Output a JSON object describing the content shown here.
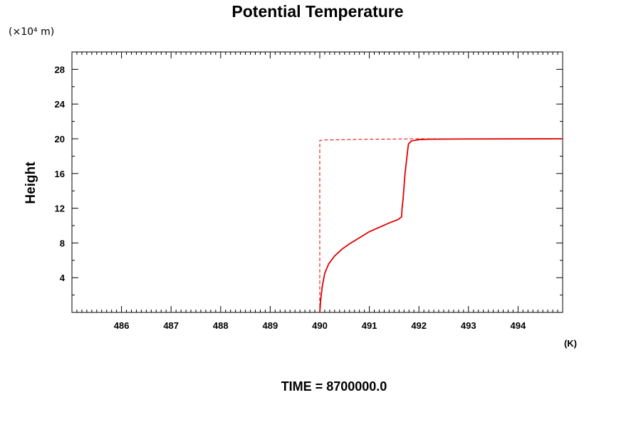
{
  "chart_data": {
    "type": "line",
    "title": "Potential Temperature",
    "ylabel": "Height",
    "yunit": "(×10⁴ m)",
    "xunit": "(K)",
    "footer": "TIME = 8700000.0",
    "xlim": [
      485.0,
      494.9
    ],
    "ylim": [
      0,
      30
    ],
    "x_ticks": [
      486,
      487,
      488,
      489,
      490,
      491,
      492,
      493,
      494
    ],
    "x_tick_labels": [
      "486",
      "487",
      "488",
      "489",
      "490",
      "491",
      "492",
      "493",
      "494"
    ],
    "y_ticks": [
      4,
      8,
      12,
      16,
      20,
      24,
      28
    ],
    "y_tick_labels": [
      "4",
      "8",
      "12",
      "16",
      "20",
      "24",
      "28"
    ],
    "grid": false,
    "series": [
      {
        "style": "solid",
        "color": "#e00000",
        "x": [
          490.0,
          490.02,
          490.05,
          490.1,
          490.18,
          490.3,
          490.45,
          490.6,
          490.8,
          491.0,
          491.2,
          491.4,
          491.58,
          491.65,
          491.66,
          491.68,
          491.7,
          491.72,
          491.74,
          491.76,
          491.78,
          491.79,
          491.85,
          492.0,
          492.2,
          493.0,
          494.9
        ],
        "y": [
          0.0,
          1.5,
          3.0,
          4.5,
          5.6,
          6.5,
          7.3,
          7.9,
          8.6,
          9.3,
          9.8,
          10.3,
          10.7,
          11.0,
          12.0,
          13.0,
          14.5,
          16.0,
          17.0,
          18.0,
          19.0,
          19.4,
          19.75,
          19.9,
          19.95,
          19.98,
          20.0
        ]
      },
      {
        "style": "dashed",
        "color": "#e00000",
        "x": [
          490.0,
          490.0,
          490.05,
          490.5,
          491.0,
          491.5,
          492.0,
          494.9
        ],
        "y": [
          0.0,
          19.8,
          19.85,
          19.9,
          19.95,
          19.97,
          20.0,
          20.0
        ]
      }
    ]
  }
}
